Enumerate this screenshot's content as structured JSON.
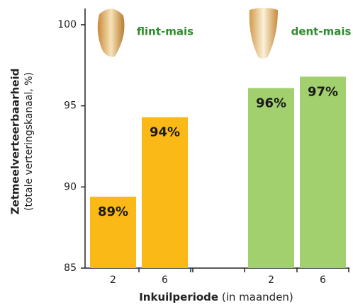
{
  "chart_data": {
    "type": "bar",
    "y_label": "Zetmeelverteerbaarheid",
    "y_sublabel": "(totale verteringskanaal, %)",
    "x_label": "Inkuilperiode",
    "x_sublabel": "(in maanden)",
    "ylim": [
      85,
      101
    ],
    "yticks": [
      85,
      90,
      95,
      100
    ],
    "groups": [
      {
        "name": "flint-mais",
        "color": "#fbb917",
        "categories": [
          "2",
          "6"
        ],
        "values": [
          89.4,
          94.3
        ],
        "value_labels": [
          "89%",
          "94%"
        ]
      },
      {
        "name": "dent-mais",
        "color": "#a2d06f",
        "categories": [
          "2",
          "6"
        ],
        "values": [
          96.1,
          96.8
        ],
        "value_labels": [
          "96%",
          "97%"
        ]
      }
    ]
  }
}
